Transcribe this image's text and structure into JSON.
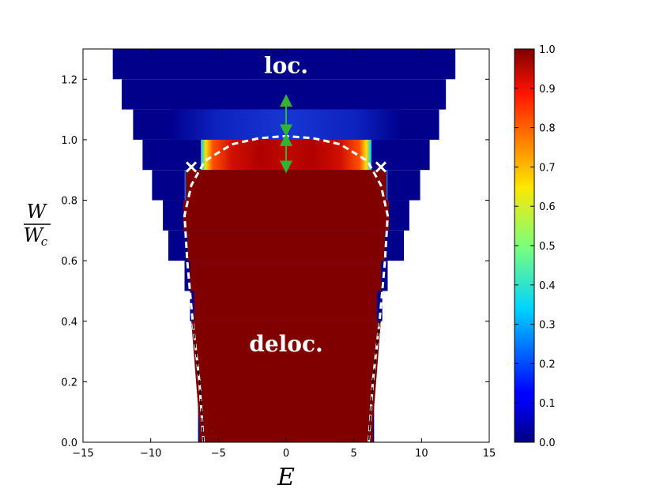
{
  "chart_data": {
    "type": "heatmap",
    "title": "",
    "xlabel": "E",
    "ylabel_numerator": "W",
    "ylabel_denominator_main": "W",
    "ylabel_denominator_sub": "c",
    "xlim": [
      -15,
      15
    ],
    "ylim": [
      0,
      1.3
    ],
    "x_ticks": [
      -15,
      -10,
      -5,
      0,
      5,
      10,
      15
    ],
    "y_ticks": [
      0.0,
      0.2,
      0.4,
      0.6,
      0.8,
      1.0,
      1.2
    ],
    "x_tick_labels": [
      "−15",
      "−10",
      "−5",
      "0",
      "5",
      "10",
      "15"
    ],
    "y_tick_labels": [
      "0.0",
      "0.2",
      "0.4",
      "0.6",
      "0.8",
      "1.0",
      "1.2"
    ],
    "colormap": "jet",
    "colorbar_range": [
      0.0,
      1.0
    ],
    "colorbar_ticks": [
      0.0,
      0.1,
      0.2,
      0.3,
      0.4,
      0.5,
      0.6,
      0.7,
      0.8,
      0.9,
      1.0
    ],
    "colorbar_tick_labels": [
      "0.0",
      "0.1",
      "0.2",
      "0.3",
      "0.4",
      "0.5",
      "0.6",
      "0.7",
      "0.8",
      "0.9",
      "1.0"
    ],
    "spectrum_edges": [
      {
        "w_from": 0.0,
        "w_to": 0.3,
        "e_min": -6.5,
        "e_max": 6.5
      },
      {
        "w_from": 0.3,
        "w_to": 0.4,
        "e_min": -6.8,
        "e_max": 6.8
      },
      {
        "w_from": 0.4,
        "w_to": 0.5,
        "e_min": -7.1,
        "e_max": 7.1
      },
      {
        "w_from": 0.5,
        "w_to": 0.6,
        "e_min": -7.5,
        "e_max": 7.5
      },
      {
        "w_from": 0.6,
        "w_to": 0.7,
        "e_min": -8.7,
        "e_max": 8.7
      },
      {
        "w_from": 0.7,
        "w_to": 0.8,
        "e_min": -9.1,
        "e_max": 9.1
      },
      {
        "w_from": 0.8,
        "w_to": 0.9,
        "e_min": -9.9,
        "e_max": 9.9
      },
      {
        "w_from": 0.9,
        "w_to": 1.0,
        "e_min": -10.6,
        "e_max": 10.6
      },
      {
        "w_from": 1.0,
        "w_to": 1.1,
        "e_min": -11.3,
        "e_max": 11.3
      },
      {
        "w_from": 1.1,
        "w_to": 1.2,
        "e_min": -12.2,
        "e_max": 11.8
      },
      {
        "w_from": 1.2,
        "w_to": 1.3,
        "e_min": -12.8,
        "e_max": 12.5
      }
    ],
    "delocalized_region": [
      {
        "w_from": 0.0,
        "w_to": 0.4,
        "e_min": -6.4,
        "e_max": 6.4
      },
      {
        "w_from": 0.4,
        "w_to": 0.5,
        "e_min": -6.8,
        "e_max": 6.7
      },
      {
        "w_from": 0.5,
        "w_to": 0.6,
        "e_min": -7.1,
        "e_max": 7.0
      },
      {
        "w_from": 0.6,
        "w_to": 0.7,
        "e_min": -7.3,
        "e_max": 7.3
      },
      {
        "w_from": 0.7,
        "w_to": 0.8,
        "e_min": -7.6,
        "e_max": 7.6
      },
      {
        "w_from": 0.8,
        "w_to": 0.9,
        "e_min": -7.4,
        "e_max": 7.4
      },
      {
        "w_from": 0.9,
        "w_to": 1.0,
        "e_min": -5.8,
        "e_max": 5.8
      }
    ],
    "mobility_edge_curve": [
      {
        "E": -6.1,
        "W": 0.0
      },
      {
        "E": -6.4,
        "W": 0.2
      },
      {
        "E": -6.9,
        "W": 0.4
      },
      {
        "E": -7.3,
        "W": 0.6
      },
      {
        "E": -7.5,
        "W": 0.75
      },
      {
        "E": -7.0,
        "W": 0.85
      },
      {
        "E": -6.0,
        "W": 0.93
      },
      {
        "E": -4.0,
        "W": 0.985
      },
      {
        "E": -2.0,
        "W": 1.005
      },
      {
        "E": 0.0,
        "W": 1.012
      },
      {
        "E": 2.0,
        "W": 1.005
      },
      {
        "E": 4.0,
        "W": 0.985
      },
      {
        "E": 6.0,
        "W": 0.93
      },
      {
        "E": 7.0,
        "W": 0.85
      },
      {
        "E": 7.5,
        "W": 0.75
      },
      {
        "E": 7.3,
        "W": 0.6
      },
      {
        "E": 6.9,
        "W": 0.4
      },
      {
        "E": 6.4,
        "W": 0.2
      },
      {
        "E": 6.1,
        "W": 0.0
      }
    ],
    "critical_points": [
      {
        "E": -7.0,
        "W": 0.91
      },
      {
        "E": 7.0,
        "W": 0.91
      }
    ],
    "arrows": [
      {
        "E": 0.0,
        "W_from": 0.91,
        "W_to": 1.0
      },
      {
        "E": 0.0,
        "W_from": 1.03,
        "W_to": 1.13
      }
    ],
    "annotations": [
      {
        "text": "loc.",
        "E": 0.0,
        "W": 1.22
      },
      {
        "text": "deloc.",
        "E": 0.0,
        "W": 0.3
      }
    ]
  },
  "colors": {
    "background": "#ffffff",
    "axis": "#000000",
    "curve": "#ffffff",
    "critical_point": "#ffffff",
    "arrow": "#2fb52f"
  }
}
